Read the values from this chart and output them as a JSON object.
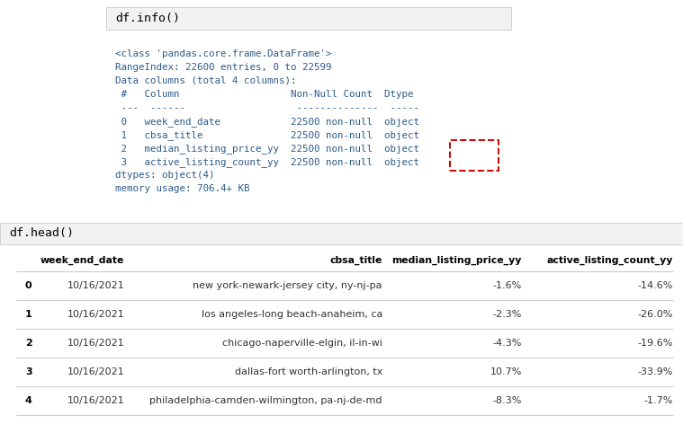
{
  "bg_color": "#ffffff",
  "code_bg_color": "#f2f2f2",
  "code_border_color": "#d0d0d0",
  "info_lines": [
    "<class 'pandas.core.frame.DataFrame'>",
    "RangeIndex: 22600 entries, 0 to 22599",
    "Data columns (total 4 columns):",
    " #   Column                   Non-Null Count  Dtype",
    " ---  ------                   --------------  -----",
    " 0   week_end_date            22500 non-null  object",
    " 1   cbsa_title               22500 non-null  object",
    " 2   median_listing_price_yy  22500 non-null  object",
    " 3   active_listing_count_yy  22500 non-null  object",
    "dtypes: object(4)",
    "memory usage: 706.4+ KB"
  ],
  "table_headers": [
    "week_end_date",
    "cbsa_title",
    "median_listing_price_yy",
    "active_listing_count_yy"
  ],
  "table_index": [
    "0",
    "1",
    "2",
    "3",
    "4"
  ],
  "table_data": [
    [
      "10/16/2021",
      "new york-newark-jersey city, ny-nj-pa",
      "-1.6%",
      "-14.6%"
    ],
    [
      "10/16/2021",
      "los angeles-long beach-anaheim, ca",
      "-2.3%",
      "-26.0%"
    ],
    [
      "10/16/2021",
      "chicago-naperville-elgin, il-in-wi",
      "-4.3%",
      "-19.6%"
    ],
    [
      "10/16/2021",
      "dallas-fort worth-arlington, tx",
      "10.7%",
      "-33.9%"
    ],
    [
      "10/16/2021",
      "philadelphia-camden-wilmington, pa-nj-de-md",
      "-8.3%",
      "-1.7%"
    ]
  ],
  "mono_font": "DejaVu Sans Mono",
  "label_font": "DejaVu Sans",
  "code_label1": "df.info()",
  "code_label2": "df.head()",
  "info_text_color": "#2c5b8a",
  "table_text_color": "#333333",
  "red_box_color": "#cc0000",
  "line_color": "#cccccc"
}
